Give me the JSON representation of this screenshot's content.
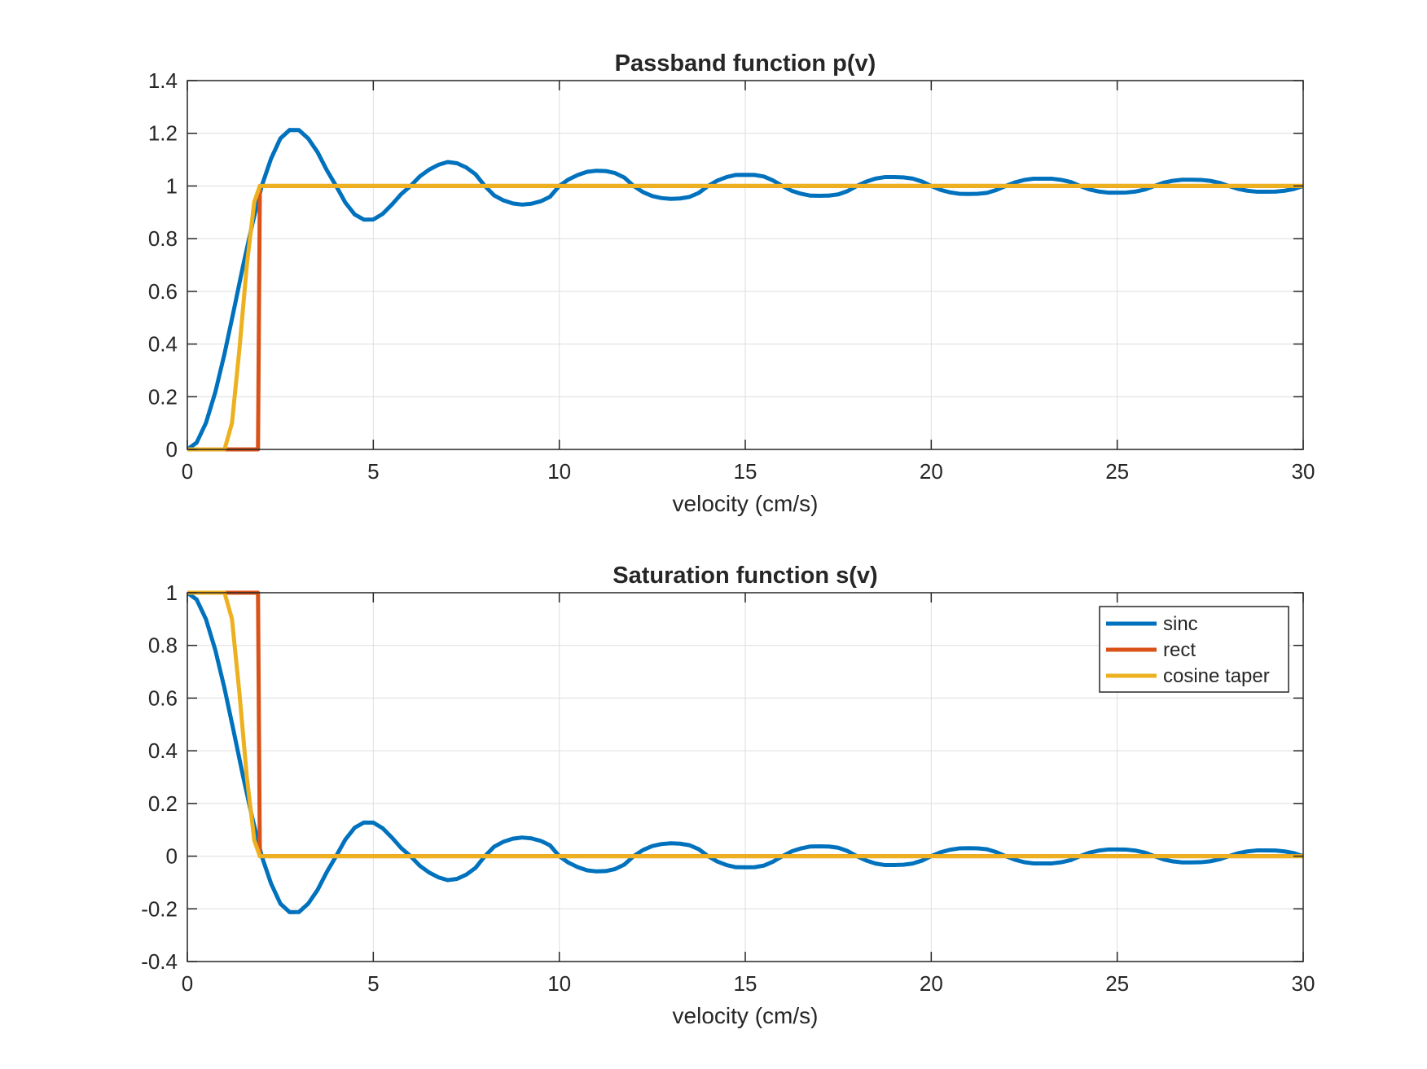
{
  "colors": {
    "sinc": "#0072BD",
    "rect": "#D95319",
    "cosine_taper": "#EDB120",
    "axes": "#262626",
    "grid": "#dedede"
  },
  "chart_data": [
    {
      "type": "line",
      "title": "Passband function p(v)",
      "xlabel": "velocity (cm/s)",
      "ylabel": "",
      "xlim": [
        0,
        30
      ],
      "ylim": [
        0,
        1.4
      ],
      "grid": true,
      "xticks": [
        0,
        5,
        10,
        15,
        20,
        25,
        30
      ],
      "xtick_labels": [
        "0",
        "5",
        "10",
        "15",
        "20",
        "25",
        "30"
      ],
      "yticks": [
        0,
        0.2,
        0.4,
        0.6,
        0.8,
        1,
        1.2,
        1.4
      ],
      "ytick_labels": [
        "0",
        "0.2",
        "0.4",
        "0.6",
        "0.8",
        "1",
        "1.2",
        "1.4"
      ],
      "series": [
        {
          "name": "sinc",
          "x": [
            0,
            0.25,
            0.5,
            0.75,
            1,
            1.25,
            1.5,
            1.75,
            2,
            2.25,
            2.5,
            2.75,
            3,
            3.25,
            3.5,
            3.75,
            4,
            4.25,
            4.5,
            4.75,
            5,
            5.25,
            5.5,
            5.75,
            6,
            6.25,
            6.5,
            6.75,
            7,
            7.25,
            7.5,
            7.75,
            8,
            8.25,
            8.5,
            8.75,
            9,
            9.25,
            9.5,
            9.75,
            10,
            10.25,
            10.5,
            10.75,
            11,
            11.25,
            11.5,
            11.75,
            12,
            12.25,
            12.5,
            12.75,
            13,
            13.25,
            13.5,
            13.75,
            14,
            14.25,
            14.5,
            14.75,
            15,
            15.25,
            15.5,
            15.75,
            16,
            16.25,
            16.5,
            16.75,
            17,
            17.25,
            17.5,
            17.75,
            18,
            18.25,
            18.5,
            18.75,
            19,
            19.25,
            19.5,
            19.75,
            20,
            20.25,
            20.5,
            20.75,
            21,
            21.25,
            21.5,
            21.75,
            22,
            22.25,
            22.5,
            22.75,
            23,
            23.25,
            23.5,
            23.75,
            24,
            24.25,
            24.5,
            24.75,
            25,
            25.25,
            25.5,
            25.75,
            26,
            26.25,
            26.5,
            26.75,
            27,
            27.25,
            27.5,
            27.75,
            28,
            28.25,
            28.5,
            28.75,
            29,
            29.25,
            29.5,
            29.75,
            30
          ],
          "y": [
            0,
            0.0257,
            0.1003,
            0.2162,
            0.3634,
            0.5288,
            0.6982,
            0.857,
            1.0,
            1.1036,
            1.1801,
            1.2126,
            1.2122,
            1.1801,
            1.1286,
            1.06,
            1.0,
            0.9365,
            0.8919,
            0.8721,
            0.8727,
            0.8939,
            0.9295,
            0.9693,
            1.0,
            1.0364,
            1.062,
            1.0804,
            1.0909,
            1.0863,
            1.07,
            1.0441,
            1.0,
            0.964,
            0.9452,
            0.9336,
            0.9293,
            0.9326,
            0.942,
            0.959,
            1.0,
            1.025,
            1.042,
            1.054,
            1.0579,
            1.0566,
            1.049,
            1.0318,
            1.0,
            0.9768,
            0.9618,
            0.954,
            0.951,
            0.9527,
            0.9585,
            0.9737,
            1.0,
            1.0205,
            1.034,
            1.042,
            1.0424,
            1.0418,
            1.036,
            1.0207,
            1.0,
            0.9818,
            0.9705,
            0.9634,
            0.9626,
            0.9636,
            0.9682,
            0.9806,
            1.0,
            1.0165,
            1.028,
            1.0336,
            1.0336,
            1.0326,
            1.028,
            1.017,
            1.0,
            0.9852,
            0.9758,
            0.9706,
            0.9697,
            0.9705,
            0.974,
            0.9848,
            1.0,
            1.0135,
            1.023,
            1.0276,
            1.0276,
            1.0274,
            1.023,
            1.015,
            1.0,
            0.9868,
            0.979,
            0.9748,
            0.9745,
            0.9752,
            0.979,
            0.9868,
            1.0,
            1.0125,
            1.02,
            1.0238,
            1.0238,
            1.0231,
            1.0195,
            1.012,
            1.0,
            0.9888,
            0.982,
            0.9783,
            0.978,
            0.9786,
            0.982,
            0.9885,
            1.0
          ]
        },
        {
          "name": "rect",
          "x": [
            0,
            1.9,
            1.95,
            30
          ],
          "y": [
            0,
            0,
            1,
            1
          ]
        },
        {
          "name": "cosine taper",
          "x": [
            0,
            0.5,
            1.0,
            1.2,
            1.4,
            1.6,
            1.8,
            1.95,
            2.0,
            30
          ],
          "y": [
            0,
            0,
            0,
            0.1,
            0.38,
            0.7,
            0.94,
            1.0,
            1.0,
            1.0
          ]
        }
      ]
    },
    {
      "type": "line",
      "title": "Saturation function s(v)",
      "xlabel": "velocity (cm/s)",
      "ylabel": "",
      "xlim": [
        0,
        30
      ],
      "ylim": [
        -0.4,
        1
      ],
      "grid": true,
      "xticks": [
        0,
        5,
        10,
        15,
        20,
        25,
        30
      ],
      "xtick_labels": [
        "0",
        "5",
        "10",
        "15",
        "20",
        "25",
        "30"
      ],
      "yticks": [
        -0.4,
        -0.2,
        0,
        0.2,
        0.4,
        0.6,
        0.8,
        1
      ],
      "ytick_labels": [
        "-0.4",
        "-0.2",
        "0",
        "0.2",
        "0.4",
        "0.6",
        "0.8",
        "1"
      ],
      "legend": [
        "sinc",
        "rect",
        "cosine taper"
      ],
      "legend_position": "top-right",
      "series": [
        {
          "name": "sinc",
          "x": [
            0,
            0.25,
            0.5,
            0.75,
            1,
            1.25,
            1.5,
            1.75,
            2,
            2.25,
            2.5,
            2.75,
            3,
            3.25,
            3.5,
            3.75,
            4,
            4.25,
            4.5,
            4.75,
            5,
            5.25,
            5.5,
            5.75,
            6,
            6.25,
            6.5,
            6.75,
            7,
            7.25,
            7.5,
            7.75,
            8,
            8.25,
            8.5,
            8.75,
            9,
            9.25,
            9.5,
            9.75,
            10,
            10.25,
            10.5,
            10.75,
            11,
            11.25,
            11.5,
            11.75,
            12,
            12.25,
            12.5,
            12.75,
            13,
            13.25,
            13.5,
            13.75,
            14,
            14.25,
            14.5,
            14.75,
            15,
            15.25,
            15.5,
            15.75,
            16,
            16.25,
            16.5,
            16.75,
            17,
            17.25,
            17.5,
            17.75,
            18,
            18.25,
            18.5,
            18.75,
            19,
            19.25,
            19.5,
            19.75,
            20,
            20.25,
            20.5,
            20.75,
            21,
            21.25,
            21.5,
            21.75,
            22,
            22.25,
            22.5,
            22.75,
            23,
            23.25,
            23.5,
            23.75,
            24,
            24.25,
            24.5,
            24.75,
            25,
            25.25,
            25.5,
            25.75,
            26,
            26.25,
            26.5,
            26.75,
            27,
            27.25,
            27.5,
            27.75,
            28,
            28.25,
            28.5,
            28.75,
            29,
            29.25,
            29.5,
            29.75,
            30
          ],
          "y": [
            1.0,
            0.9743,
            0.8997,
            0.7838,
            0.6366,
            0.4712,
            0.3018,
            0.143,
            0.0,
            -0.1036,
            -0.1801,
            -0.2126,
            -0.2122,
            -0.1801,
            -0.1286,
            -0.06,
            0.0,
            0.0635,
            0.1081,
            0.1279,
            0.1273,
            0.1061,
            0.0705,
            0.0307,
            0.0,
            -0.0364,
            -0.062,
            -0.0804,
            -0.0909,
            -0.0863,
            -0.07,
            -0.0441,
            0.0,
            0.036,
            0.0548,
            0.0664,
            0.0707,
            0.0674,
            0.058,
            0.041,
            0.0,
            -0.025,
            -0.042,
            -0.054,
            -0.0579,
            -0.0566,
            -0.049,
            -0.0318,
            0.0,
            0.0232,
            0.0382,
            0.046,
            0.049,
            0.0473,
            0.0415,
            0.0263,
            0.0,
            -0.0205,
            -0.034,
            -0.042,
            -0.0424,
            -0.0418,
            -0.036,
            -0.0207,
            0.0,
            0.0182,
            0.0295,
            0.0366,
            0.0374,
            0.0364,
            0.0318,
            0.0194,
            0.0,
            -0.0165,
            -0.028,
            -0.0336,
            -0.0336,
            -0.0326,
            -0.028,
            -0.017,
            0.0,
            0.0148,
            0.0242,
            0.0294,
            0.0303,
            0.0295,
            0.026,
            0.0152,
            0.0,
            -0.0135,
            -0.023,
            -0.0276,
            -0.0276,
            -0.0274,
            -0.023,
            -0.015,
            0.0,
            0.0132,
            0.021,
            0.0252,
            0.0255,
            0.0248,
            0.021,
            0.0132,
            0.0,
            -0.0125,
            -0.02,
            -0.0238,
            -0.0238,
            -0.0231,
            -0.0195,
            -0.012,
            0.0,
            0.0112,
            0.018,
            0.0217,
            0.022,
            0.0214,
            0.018,
            0.0115,
            0.0
          ]
        },
        {
          "name": "rect",
          "x": [
            0,
            1.9,
            1.95,
            30
          ],
          "y": [
            1,
            1,
            0,
            0
          ]
        },
        {
          "name": "cosine taper",
          "x": [
            0,
            0.5,
            1.0,
            1.2,
            1.4,
            1.6,
            1.8,
            1.95,
            2.0,
            30
          ],
          "y": [
            1,
            1,
            1,
            0.9,
            0.62,
            0.3,
            0.06,
            0.0,
            0.0,
            0.0
          ]
        }
      ]
    }
  ]
}
